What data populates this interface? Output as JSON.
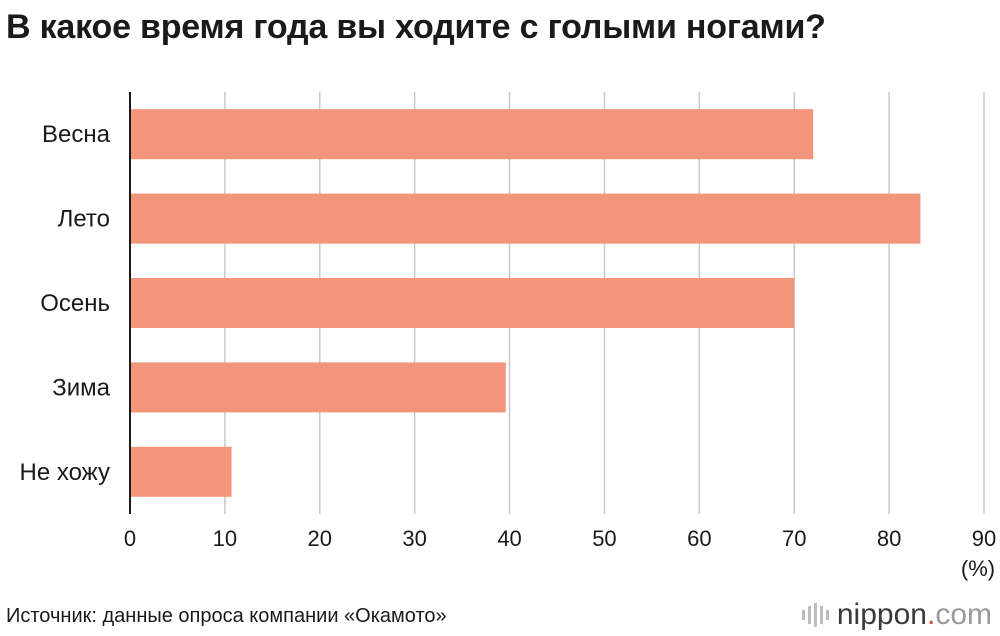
{
  "title": "В какое время года вы ходите с голыми ногами?",
  "source": "Источник: данные опроса компании «Окамото»",
  "logo": {
    "name": "nippon",
    "dot": ".",
    "tld": "com"
  },
  "colors": {
    "bar": "#f2957b",
    "grid": "#c8c8c8",
    "axis": "#1a1a1a"
  },
  "chart_data": {
    "type": "bar",
    "orientation": "horizontal",
    "categories": [
      "Весна",
      "Лето",
      "Осень",
      "Зима",
      "Не хожу"
    ],
    "values": [
      72,
      83.3,
      70,
      39.6,
      10.7
    ],
    "xlim": [
      0,
      90
    ],
    "xticks": [
      0,
      10,
      20,
      30,
      40,
      50,
      60,
      70,
      80,
      90
    ],
    "unit": "(%)",
    "grid": true
  }
}
